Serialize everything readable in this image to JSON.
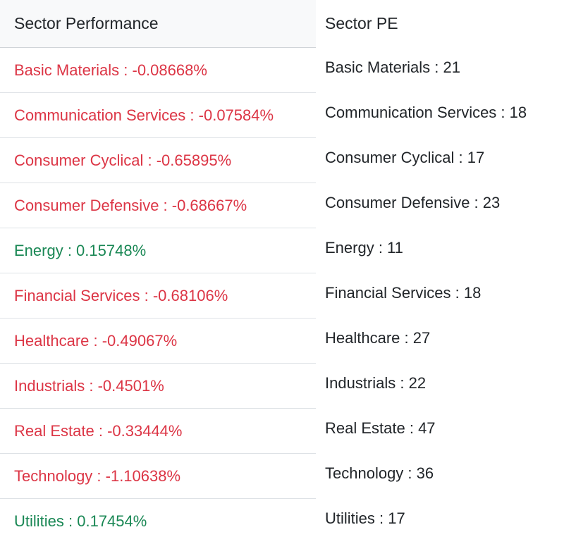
{
  "performance": {
    "title": "Sector Performance",
    "colors": {
      "negative": "#dc3545",
      "positive": "#198754"
    },
    "rows": [
      {
        "text": "Basic Materials : -0.08668%",
        "trend": "neg"
      },
      {
        "text": "Communication Services : -0.07584%",
        "trend": "neg"
      },
      {
        "text": "Consumer Cyclical : -0.65895%",
        "trend": "neg"
      },
      {
        "text": "Consumer Defensive : -0.68667%",
        "trend": "neg"
      },
      {
        "text": "Energy : 0.15748%",
        "trend": "pos"
      },
      {
        "text": "Financial Services : -0.68106%",
        "trend": "neg"
      },
      {
        "text": "Healthcare : -0.49067%",
        "trend": "neg"
      },
      {
        "text": "Industrials : -0.4501%",
        "trend": "neg"
      },
      {
        "text": "Real Estate : -0.33444%",
        "trend": "neg"
      },
      {
        "text": "Technology : -1.10638%",
        "trend": "neg"
      },
      {
        "text": "Utilities : 0.17454%",
        "trend": "pos"
      }
    ]
  },
  "pe": {
    "title": "Sector PE",
    "rows": [
      {
        "text": "Basic Materials : 21"
      },
      {
        "text": "Communication Services : 18"
      },
      {
        "text": "Consumer Cyclical : 17"
      },
      {
        "text": "Consumer Defensive : 23"
      },
      {
        "text": "Energy : 11"
      },
      {
        "text": "Financial Services : 18"
      },
      {
        "text": "Healthcare : 27"
      },
      {
        "text": "Industrials : 22"
      },
      {
        "text": "Real Estate : 47"
      },
      {
        "text": "Technology : 36"
      },
      {
        "text": "Utilities : 17"
      }
    ]
  }
}
